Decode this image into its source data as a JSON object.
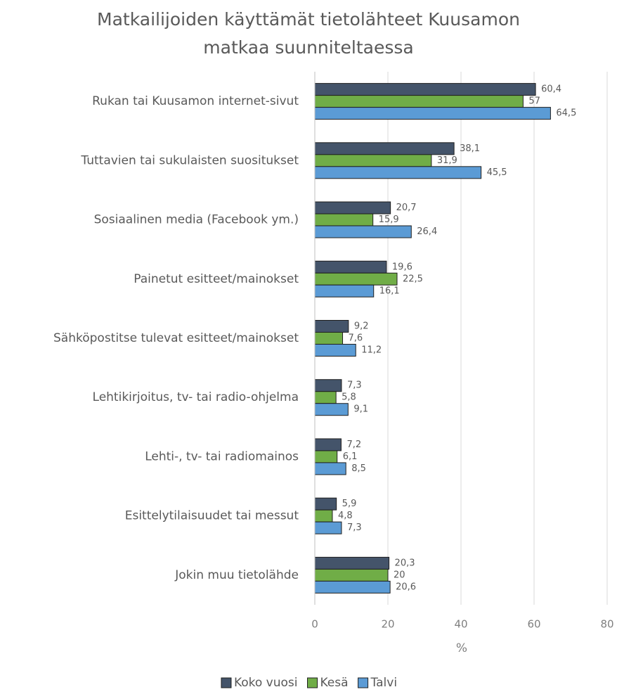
{
  "chart_data": {
    "type": "bar",
    "orientation": "horizontal",
    "title": "Matkailijoiden käyttämät tietolähteet Kuusamon matkaa suunniteltaessa",
    "x_label": "%",
    "categories": [
      "Rukan tai Kuusamon internet-sivut",
      "Tuttavien tai sukulaisten suositukset",
      "Sosiaalinen media (Facebook ym.)",
      "Painetut esitteet/mainokset",
      "Sähköpostitse tulevat esitteet/mainokset",
      "Lehtikirjoitus, tv- tai radio-ohjelma",
      "Lehti-, tv- tai radiomainos",
      "Esittelytilaisuudet tai messut",
      "Jokin muu tietolähde"
    ],
    "series": [
      {
        "name": "Koko vuosi",
        "color": "#44546a",
        "values": [
          60.4,
          38.1,
          20.7,
          19.6,
          9.2,
          7.3,
          7.2,
          5.9,
          20.3
        ],
        "value_labels": [
          "60,4",
          "38,1",
          "20,7",
          "19,6",
          "9,2",
          "7,3",
          "7,2",
          "5,9",
          "20,3"
        ]
      },
      {
        "name": "Kesä",
        "color": "#70ad47",
        "values": [
          57,
          31.9,
          15.9,
          22.5,
          7.6,
          5.8,
          6.1,
          4.8,
          20
        ],
        "value_labels": [
          "57",
          "31,9",
          "15,9",
          "22,5",
          "7,6",
          "5,8",
          "6,1",
          "4,8",
          "20"
        ]
      },
      {
        "name": "Talvi",
        "color": "#5b9bd5",
        "values": [
          64.5,
          45.5,
          26.4,
          16.1,
          11.2,
          9.1,
          8.5,
          7.3,
          20.6
        ],
        "value_labels": [
          "64,5",
          "45,5",
          "26,4",
          "16,1",
          "11,2",
          "9,1",
          "8,5",
          "7,3",
          "20,6"
        ]
      }
    ],
    "xlim": [
      0,
      80
    ],
    "xticks": [
      0,
      20,
      40,
      60,
      80
    ],
    "grid": true,
    "legend": "bottom"
  }
}
